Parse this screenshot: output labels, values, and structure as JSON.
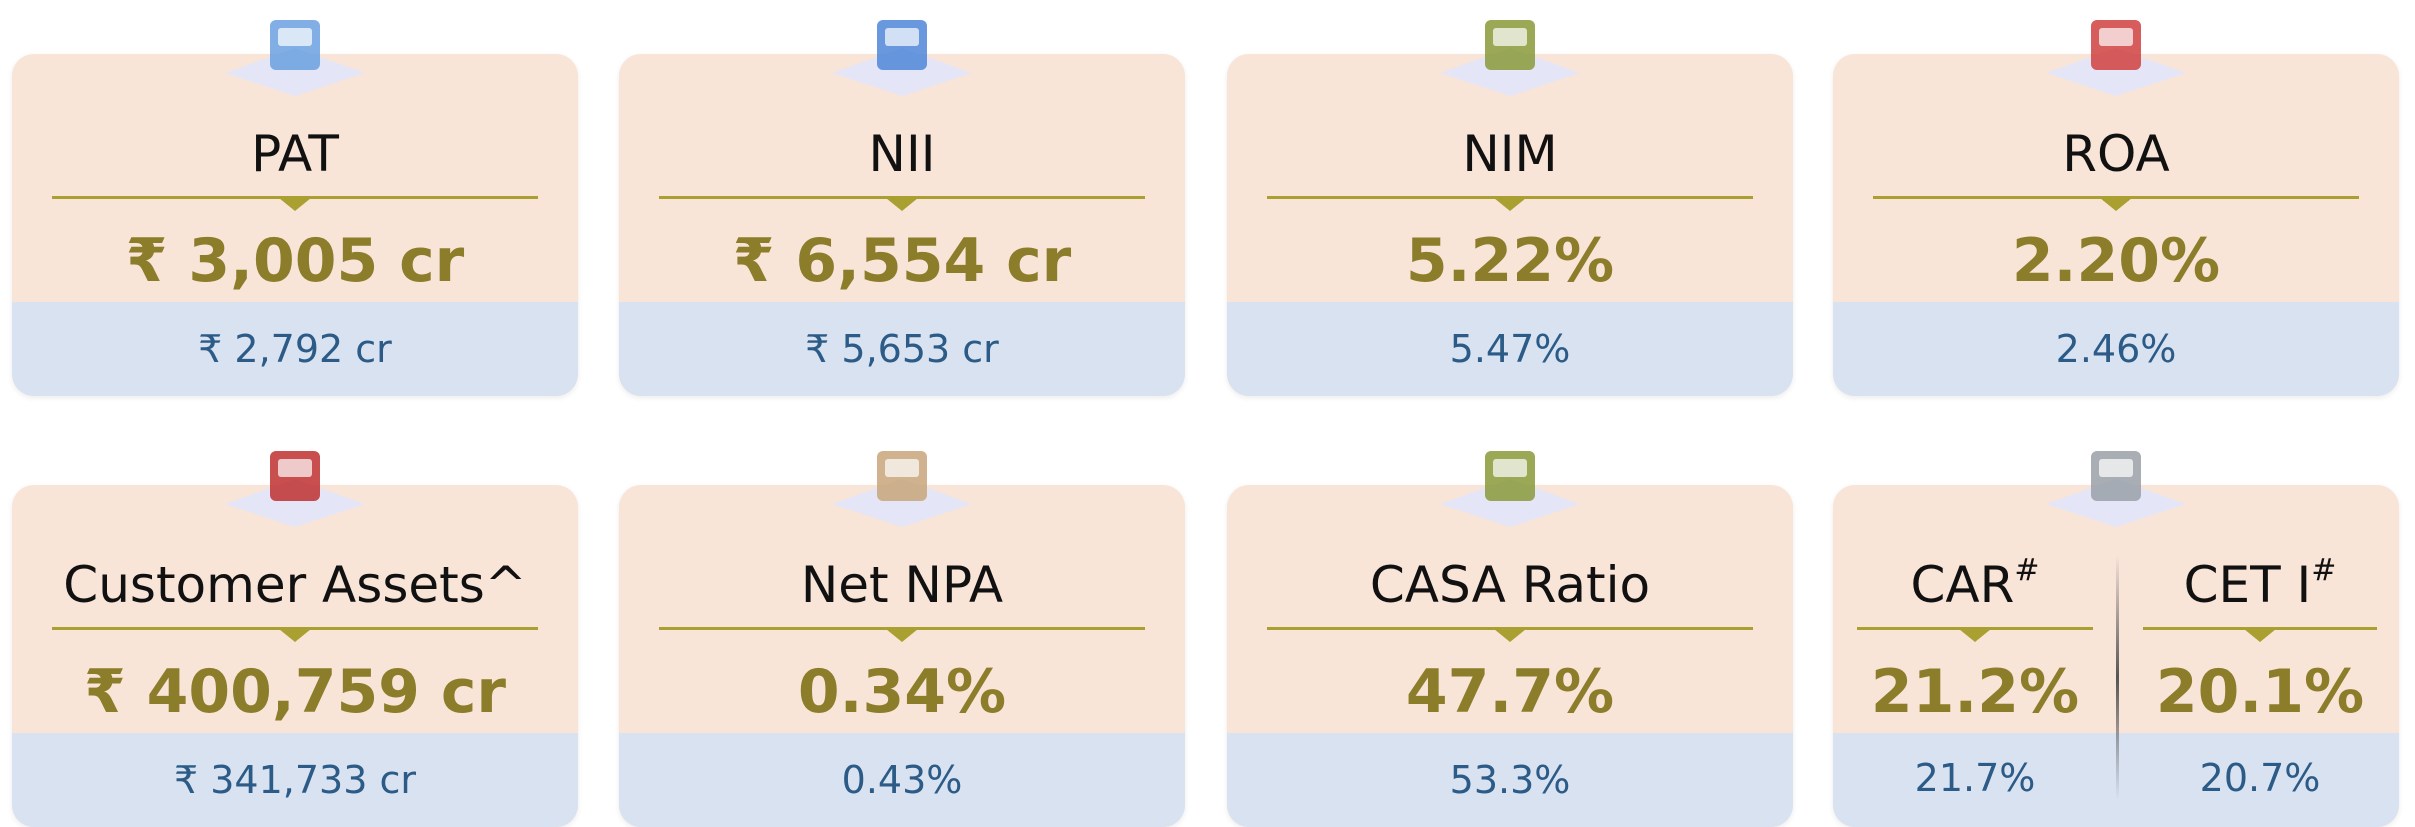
{
  "cards": [
    {
      "title": "PAT",
      "value": "₹ 3,005 cr",
      "previous": "₹ 2,792 cr"
    },
    {
      "title": "NII",
      "value": "₹ 6,554 cr",
      "previous": "₹ 5,653 cr"
    },
    {
      "title": "NIM",
      "value": "5.22%",
      "previous": "5.47%"
    },
    {
      "title": "ROA",
      "value": "2.20%",
      "previous": "2.46%"
    },
    {
      "title": "Customer Assets^",
      "value": "₹ 400,759 cr",
      "previous": "₹ 341,733 cr"
    },
    {
      "title": "Net NPA",
      "value": "0.34%",
      "previous": "0.43%"
    },
    {
      "title": "CASA Ratio",
      "value": "47.7%",
      "previous": "53.3%"
    },
    {
      "metrics": [
        {
          "title": "CAR",
          "marker": "#",
          "value": "21.2%",
          "previous": "21.7%"
        },
        {
          "title": "CET I",
          "marker": "#",
          "value": "20.1%",
          "previous": "20.7%"
        }
      ]
    }
  ]
}
